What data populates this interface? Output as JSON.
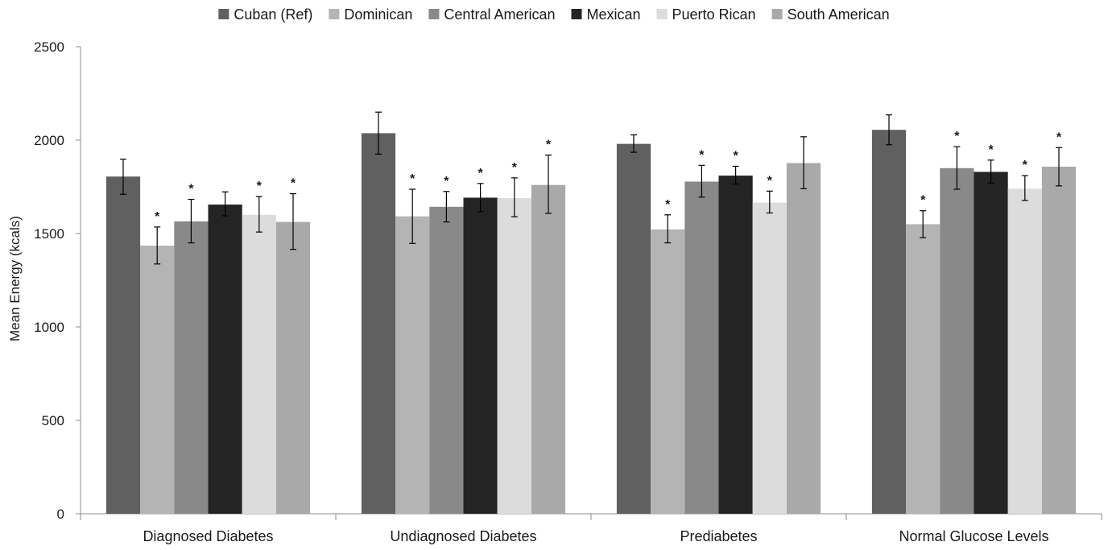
{
  "chart_data": {
    "type": "bar",
    "ylabel": "Mean Energy (kcals)",
    "xlabel": "",
    "ylim": [
      0,
      2500
    ],
    "yticks": [
      0,
      500,
      1000,
      1500,
      2000,
      2500
    ],
    "grid": false,
    "legend_position": "top-center",
    "categories": [
      "Diagnosed Diabetes",
      "Undiagnosed Diabetes",
      "Prediabetes",
      "Normal Glucose Levels"
    ],
    "significance_marker": "*",
    "series": [
      {
        "name": "Cuban (Ref)",
        "color": "#606060",
        "values": [
          1805,
          2037,
          1980,
          2055
        ],
        "error_low": [
          1710,
          1925,
          1935,
          1975
        ],
        "error_high": [
          1898,
          2150,
          2028,
          2135
        ],
        "significant": [
          false,
          false,
          false,
          false
        ]
      },
      {
        "name": "Dominican",
        "color": "#b4b4b4",
        "values": [
          1435,
          1592,
          1522,
          1550
        ],
        "error_low": [
          1337,
          1447,
          1450,
          1478
        ],
        "error_high": [
          1535,
          1737,
          1600,
          1622
        ],
        "significant": [
          true,
          true,
          true,
          true
        ]
      },
      {
        "name": "Central American",
        "color": "#898989",
        "values": [
          1565,
          1643,
          1778,
          1850
        ],
        "error_low": [
          1450,
          1562,
          1695,
          1737
        ],
        "error_high": [
          1683,
          1725,
          1865,
          1965
        ],
        "significant": [
          true,
          true,
          true,
          true
        ]
      },
      {
        "name": "Mexican",
        "color": "#242424",
        "values": [
          1655,
          1692,
          1810,
          1830
        ],
        "error_low": [
          1595,
          1617,
          1765,
          1770
        ],
        "error_high": [
          1723,
          1768,
          1860,
          1893
        ],
        "significant": [
          false,
          true,
          true,
          true
        ]
      },
      {
        "name": "Puerto Rican",
        "color": "#dcdcdc",
        "values": [
          1600,
          1690,
          1665,
          1740
        ],
        "error_low": [
          1508,
          1590,
          1610,
          1677
        ],
        "error_high": [
          1698,
          1798,
          1727,
          1810
        ],
        "significant": [
          true,
          true,
          true,
          true
        ]
      },
      {
        "name": "South American",
        "color": "#a9a9a9",
        "values": [
          1562,
          1760,
          1877,
          1858
        ],
        "error_low": [
          1415,
          1608,
          1740,
          1755
        ],
        "error_high": [
          1713,
          1920,
          2018,
          1960
        ],
        "significant": [
          true,
          true,
          false,
          true
        ]
      }
    ]
  }
}
